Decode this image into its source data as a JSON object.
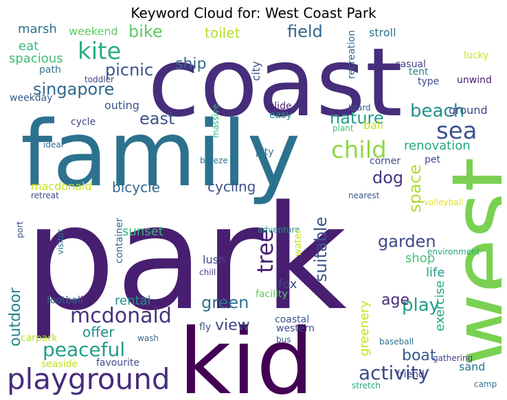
{
  "title": "Keyword Cloud for: West Coast Park",
  "palette": {
    "dark_purple": "#440154",
    "purple": "#472d7b",
    "indigo": "#3b528b",
    "blue": "#2c728e",
    "teal": "#21918c",
    "green_teal": "#28ae80",
    "green": "#5ec962",
    "lime": "#addc30",
    "yellow": "#fde725"
  },
  "words": [
    {
      "text": "park",
      "color": "#481f70"
    },
    {
      "text": "coast",
      "color": "#472d7b"
    },
    {
      "text": "family",
      "color": "#2c728e"
    },
    {
      "text": "west",
      "color": "#7ad151"
    },
    {
      "text": "kid",
      "color": "#440154"
    },
    {
      "text": "playground",
      "color": "#472d7b"
    },
    {
      "text": "child",
      "color": "#8fd744"
    },
    {
      "text": "sea",
      "color": "#3b528b"
    },
    {
      "text": "kite",
      "color": "#28ae80"
    },
    {
      "text": "beach",
      "color": "#21918c"
    },
    {
      "text": "mcdonald",
      "color": "#46327e"
    },
    {
      "text": "peaceful",
      "color": "#1f9e89"
    },
    {
      "text": "activity",
      "color": "#3e4989"
    },
    {
      "text": "tree",
      "color": "#481f70"
    },
    {
      "text": "play",
      "color": "#1f9e89"
    },
    {
      "text": "singapore",
      "color": "#31688e"
    },
    {
      "text": "picnic",
      "color": "#3b528b"
    },
    {
      "text": "bike",
      "color": "#5ec962"
    },
    {
      "text": "garden",
      "color": "#3e4989"
    },
    {
      "text": "suitable",
      "color": "#3b528b"
    },
    {
      "text": "space",
      "color": "#addc30"
    },
    {
      "text": "nature",
      "color": "#1f9e89"
    },
    {
      "text": "east",
      "color": "#3b528b"
    },
    {
      "text": "field",
      "color": "#31688e"
    },
    {
      "text": "dog",
      "color": "#463480"
    },
    {
      "text": "green",
      "color": "#2c728e"
    },
    {
      "text": "boat",
      "color": "#38588c"
    },
    {
      "text": "outdoor",
      "color": "#26828e"
    },
    {
      "text": "age",
      "color": "#472d7b"
    },
    {
      "text": "ship",
      "color": "#31688e"
    },
    {
      "text": "view",
      "color": "#414487"
    },
    {
      "text": "offer",
      "color": "#21918c"
    },
    {
      "text": "cycling",
      "color": "#3b528b"
    },
    {
      "text": "bicycle",
      "color": "#31688e"
    },
    {
      "text": "toilet",
      "color": "#b5de2b"
    },
    {
      "text": "renovation",
      "color": "#22a884"
    },
    {
      "text": "marsh",
      "color": "#2c728e"
    },
    {
      "text": "eat",
      "color": "#35b779"
    },
    {
      "text": "spacious",
      "color": "#3dbc74"
    },
    {
      "text": "outing",
      "color": "#3b528b"
    },
    {
      "text": "sunset",
      "color": "#35b779"
    },
    {
      "text": "fox",
      "color": "#3e4989"
    },
    {
      "text": "rental",
      "color": "#21918c"
    },
    {
      "text": "greenery",
      "color": "#c8e020"
    },
    {
      "text": "exercise",
      "color": "#22a884"
    },
    {
      "text": "shop",
      "color": "#46c06f"
    },
    {
      "text": "life",
      "color": "#1f9e89"
    },
    {
      "text": "lush",
      "color": "#3e4989"
    },
    {
      "text": "ball",
      "color": "#c2df23"
    },
    {
      "text": "weekend",
      "color": "#5ec962"
    },
    {
      "text": "city",
      "color": "#3b528b"
    },
    {
      "text": "macdonald",
      "color": "#c8e020"
    },
    {
      "text": "container",
      "color": "#31688e"
    },
    {
      "text": "sand",
      "color": "#2c728e"
    },
    {
      "text": "stroll",
      "color": "#2c728e"
    },
    {
      "text": "ground",
      "color": "#3e4989"
    },
    {
      "text": "facility",
      "color": "#5ec962"
    },
    {
      "text": "football",
      "color": "#33638d"
    },
    {
      "text": "path",
      "color": "#2c728e"
    },
    {
      "text": "weekday",
      "color": "#38588c"
    },
    {
      "text": "cycle",
      "color": "#414487"
    },
    {
      "text": "recreation",
      "color": "#31688e"
    },
    {
      "text": "casual",
      "color": "#414487"
    },
    {
      "text": "tent",
      "color": "#26828e"
    },
    {
      "text": "type",
      "color": "#3e4989"
    },
    {
      "text": "unwind",
      "color": "#482173"
    },
    {
      "text": "lucky",
      "color": "#d2e21b"
    },
    {
      "text": "toddler",
      "color": "#414487"
    },
    {
      "text": "massive",
      "color": "#35b779"
    },
    {
      "text": "slide",
      "color": "#481f70"
    },
    {
      "text": "easy",
      "color": "#21918c"
    },
    {
      "text": "lizard",
      "color": "#38588c"
    },
    {
      "text": "plant",
      "color": "#3dbc74"
    },
    {
      "text": "ideal",
      "color": "#31688e"
    },
    {
      "text": "breeze",
      "color": "#2c728e"
    },
    {
      "text": "pity",
      "color": "#2c728e"
    },
    {
      "text": "corner",
      "color": "#3e4989"
    },
    {
      "text": "pet",
      "color": "#3b528b"
    },
    {
      "text": "retreat",
      "color": "#3e4989"
    },
    {
      "text": "nearest",
      "color": "#3b528b"
    },
    {
      "text": "volleyball",
      "color": "#e5e419"
    },
    {
      "text": "port",
      "color": "#3b528b"
    },
    {
      "text": "visitor",
      "color": "#2c728e"
    },
    {
      "text": "adventure",
      "color": "#21918c"
    },
    {
      "text": "water",
      "color": "#c8e020"
    },
    {
      "text": "environment",
      "color": "#22a884"
    },
    {
      "text": "chill",
      "color": "#3e4989"
    },
    {
      "text": "coastal",
      "color": "#38588c"
    },
    {
      "text": "fly",
      "color": "#3b528b"
    },
    {
      "text": "western",
      "color": "#3e4989"
    },
    {
      "text": "carpark",
      "color": "#b5de2b"
    },
    {
      "text": "wash",
      "color": "#31688e"
    },
    {
      "text": "bus",
      "color": "#3b528b"
    },
    {
      "text": "baseball",
      "color": "#2c728e"
    },
    {
      "text": "seaside",
      "color": "#c8e020"
    },
    {
      "text": "favourite",
      "color": "#3e4989"
    },
    {
      "text": "gathering",
      "color": "#414487"
    },
    {
      "text": "friend",
      "color": "#3e4989"
    },
    {
      "text": "stretch",
      "color": "#22a884"
    },
    {
      "text": "camp",
      "color": "#2c728e"
    }
  ]
}
